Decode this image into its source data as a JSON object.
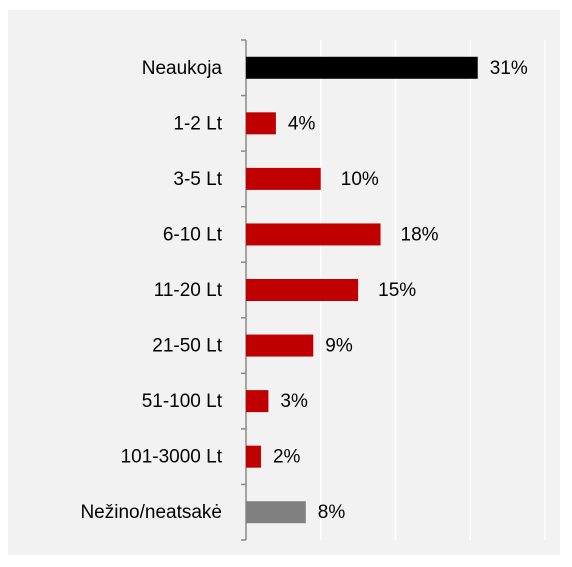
{
  "chart_data": {
    "type": "barh",
    "categories": [
      "Neaukoja",
      "1-2 Lt",
      "3-5 Lt",
      "6-10 Lt",
      "11-20 Lt",
      "21-50 Lt",
      "51-100 Lt",
      "101-3000 Lt",
      "Nežino/neatsakė"
    ],
    "values": [
      31,
      4,
      10,
      18,
      15,
      9,
      3,
      2,
      8
    ],
    "value_labels": [
      "31%",
      "4%",
      "10%",
      "18%",
      "15%",
      "9%",
      "3%",
      "2%",
      "8%"
    ],
    "colors": [
      "#000000",
      "#c00000",
      "#c00000",
      "#c00000",
      "#c00000",
      "#c00000",
      "#c00000",
      "#c00000",
      "#808080"
    ],
    "xlim": [
      0,
      40
    ],
    "xticks": [
      0,
      10,
      20,
      30,
      40
    ],
    "grid": true
  }
}
